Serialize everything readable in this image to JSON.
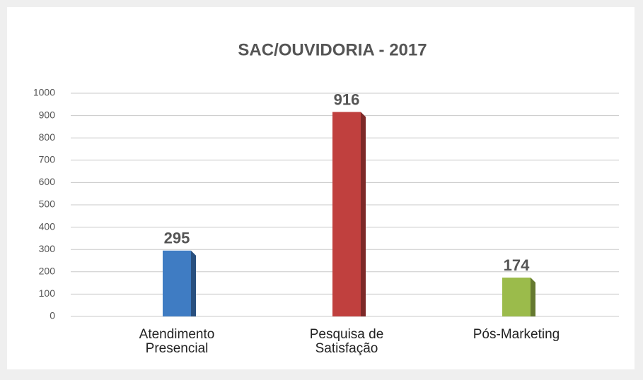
{
  "chart_data": {
    "type": "bar",
    "title": "SAC/OUVIDORIA - 2017",
    "categories": [
      "Atendimento Presencial",
      "Pesquisa de Satisfação",
      "Pós-Marketing"
    ],
    "values": [
      295,
      916,
      174
    ],
    "colors": [
      "#3f7cc3",
      "#c0403e",
      "#9bbb4b"
    ],
    "ylim": [
      0,
      1000
    ],
    "yticks": [
      0,
      100,
      200,
      300,
      400,
      500,
      600,
      700,
      800,
      900,
      1000
    ],
    "grid": true
  }
}
